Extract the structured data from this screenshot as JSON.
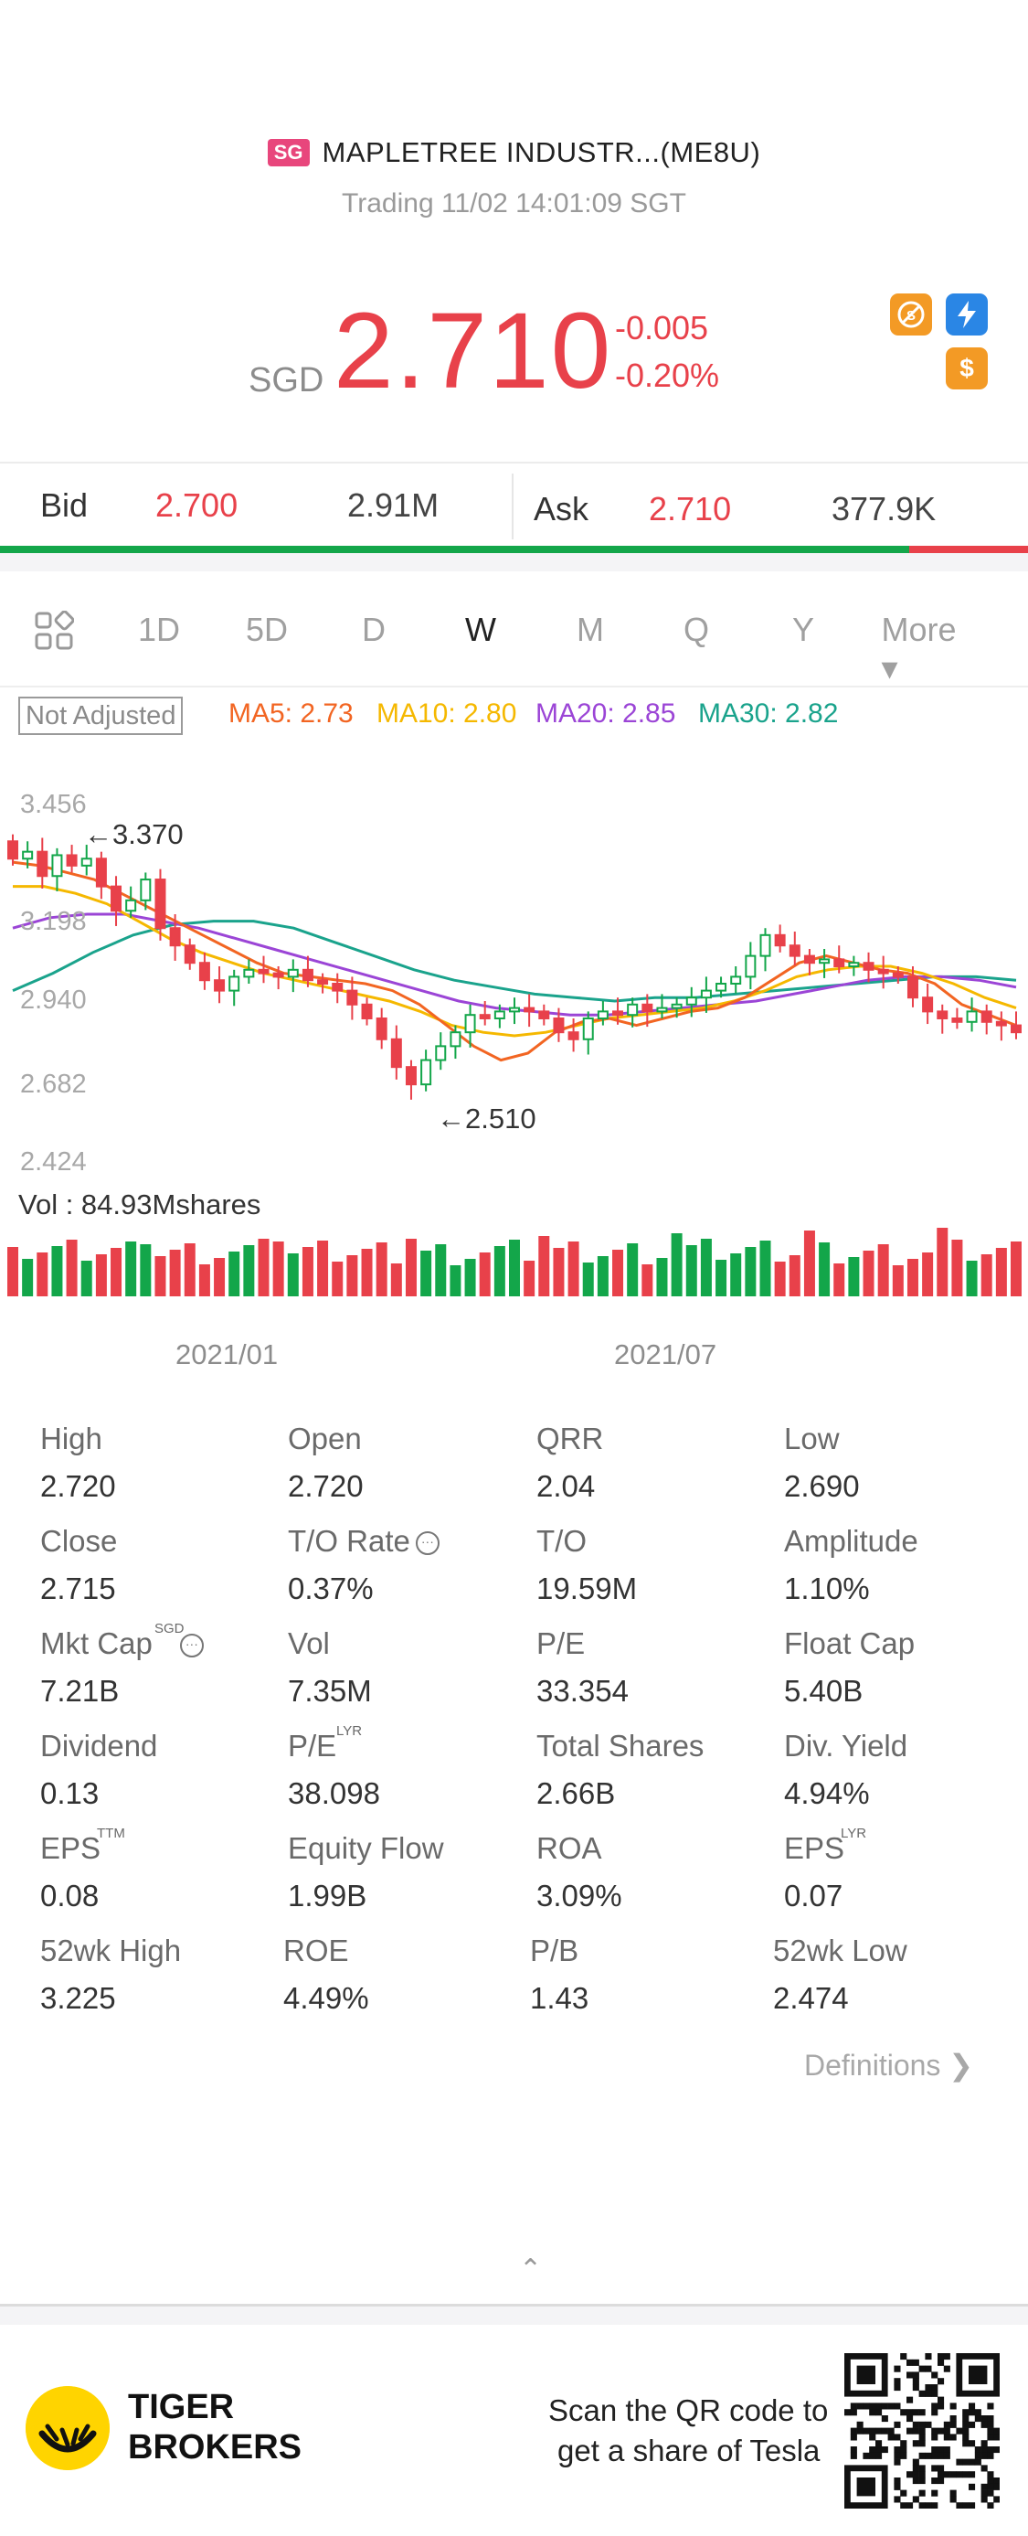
{
  "header": {
    "market_badge": "SG",
    "stock_name": "MAPLETREE INDUSTR...(ME8U)",
    "trading_status": "Trading 11/02 14:01:09 SGT",
    "currency": "SGD",
    "price": "2.710",
    "change_abs": "-0.005",
    "change_pct": "-0.20%",
    "icons": [
      "no-short-icon",
      "flash-icon",
      "dollar-icon"
    ],
    "colors": {
      "down": "#e8414a",
      "up": "#13a64a"
    }
  },
  "bid_ask": {
    "bid_label": "Bid",
    "bid_price": "2.700",
    "bid_volume": "2.91M",
    "ask_label": "Ask",
    "ask_price": "2.710",
    "ask_volume": "377.9K",
    "bid_share": 0.884
  },
  "tabs": {
    "items": [
      "1D",
      "5D",
      "D",
      "W",
      "M",
      "Q",
      "Y"
    ],
    "active": "W",
    "more_label": "More ▾"
  },
  "indicators": {
    "adjust_label": "Not Adjusted",
    "ma5": "MA5: 2.73",
    "ma10": "MA10: 2.80",
    "ma20": "MA20: 2.85",
    "ma30": "MA30: 2.82",
    "colors": {
      "ma5": "#f26522",
      "ma10": "#f5b800",
      "ma20": "#9b45d6",
      "ma30": "#1aa38c"
    }
  },
  "volume_label": "Vol  : 84.93Mshares",
  "chart_data": {
    "type": "candlestick",
    "y_ticks": [
      "3.456",
      "3.198",
      "2.940",
      "2.682",
      "2.424"
    ],
    "ylim": [
      2.424,
      3.456
    ],
    "x_ticks": [
      "2021/01",
      "2021/07"
    ],
    "high_annotation": "←3.370",
    "low_annotation": "←2.510",
    "closes": [
      3.3,
      3.32,
      3.25,
      3.31,
      3.28,
      3.3,
      3.22,
      3.15,
      3.18,
      3.24,
      3.1,
      3.05,
      3.0,
      2.95,
      2.92,
      2.96,
      2.98,
      2.97,
      2.96,
      2.98,
      2.95,
      2.94,
      2.92,
      2.88,
      2.84,
      2.78,
      2.7,
      2.65,
      2.72,
      2.76,
      2.8,
      2.85,
      2.84,
      2.86,
      2.87,
      2.86,
      2.84,
      2.8,
      2.78,
      2.84,
      2.86,
      2.85,
      2.88,
      2.86,
      2.87,
      2.88,
      2.9,
      2.92,
      2.94,
      2.96,
      3.02,
      3.08,
      3.05,
      3.02,
      3.0,
      3.01,
      2.99,
      3.0,
      2.98,
      2.97,
      2.96,
      2.9,
      2.86,
      2.84,
      2.83,
      2.86,
      2.83,
      2.82,
      2.8
    ],
    "ma5": [
      3.29,
      3.28,
      3.26,
      3.24,
      3.2,
      3.16,
      3.12,
      3.08,
      3.04,
      3.0,
      2.97,
      2.96,
      2.95,
      2.94,
      2.92,
      2.88,
      2.82,
      2.76,
      2.72,
      2.74,
      2.8,
      2.83,
      2.84,
      2.82,
      2.84,
      2.86,
      2.87,
      2.9,
      2.95,
      3.0,
      3.02,
      3.0,
      2.98,
      2.97,
      2.94,
      2.88,
      2.85,
      2.82
    ],
    "ma10": [
      3.22,
      3.22,
      3.2,
      3.17,
      3.12,
      3.07,
      3.03,
      3.0,
      2.97,
      2.95,
      2.93,
      2.91,
      2.89,
      2.86,
      2.82,
      2.8,
      2.79,
      2.8,
      2.82,
      2.84,
      2.85,
      2.86,
      2.87,
      2.89,
      2.92,
      2.96,
      2.98,
      2.99,
      2.99,
      2.97,
      2.94,
      2.9,
      2.87
    ],
    "ma20": [
      3.1,
      3.13,
      3.14,
      3.14,
      3.12,
      3.1,
      3.07,
      3.04,
      3.01,
      2.98,
      2.95,
      2.92,
      2.89,
      2.87,
      2.86,
      2.85,
      2.85,
      2.86,
      2.87,
      2.88,
      2.89,
      2.91,
      2.93,
      2.95,
      2.96,
      2.96,
      2.95,
      2.93
    ],
    "ma30": [
      2.92,
      2.97,
      3.03,
      3.08,
      3.11,
      3.12,
      3.12,
      3.1,
      3.06,
      3.02,
      2.98,
      2.95,
      2.93,
      2.91,
      2.9,
      2.89,
      2.9,
      2.9,
      2.91,
      2.92,
      2.93,
      2.94,
      2.95,
      2.96,
      2.96,
      2.95
    ]
  },
  "stats": [
    {
      "label": "High",
      "value": "2.720"
    },
    {
      "label": "Open",
      "value": "2.720"
    },
    {
      "label": "QRR",
      "value": "2.04"
    },
    {
      "label": "Low",
      "value": "2.690"
    },
    {
      "label": "Close",
      "value": "2.715"
    },
    {
      "label": "T/O Rate",
      "value": "0.37%"
    },
    {
      "label": "T/O",
      "value": "19.59M"
    },
    {
      "label": "Amplitude",
      "value": "1.10%"
    },
    {
      "label": "Mkt Cap",
      "value": "7.21B"
    },
    {
      "label": "Vol",
      "value": "7.35M"
    },
    {
      "label": "P/E",
      "value": "33.354"
    },
    {
      "label": "Float Cap",
      "value": "5.40B"
    },
    {
      "label": "Dividend",
      "value": "0.13"
    },
    {
      "label": "P/E",
      "value": "38.098"
    },
    {
      "label": "Total Shares",
      "value": "2.66B"
    },
    {
      "label": "Div. Yield",
      "value": "4.94%"
    },
    {
      "label": "EPS",
      "value": "0.08"
    },
    {
      "label": "Equity Flow",
      "value": "1.99B"
    },
    {
      "label": "ROA",
      "value": "3.09%"
    },
    {
      "label": "EPS",
      "value": "0.07"
    },
    {
      "label": "52wk High",
      "value": "3.225"
    },
    {
      "label": "ROE",
      "value": "4.49%"
    },
    {
      "label": "P/B",
      "value": "1.43"
    },
    {
      "label": "52wk Low",
      "value": "2.474"
    }
  ],
  "stat_superscripts": {
    "mkt_cap": "SGD",
    "pe_lyr": "LYR",
    "eps_ttm": "TTM",
    "eps_lyr": "LYR"
  },
  "definitions_label": "Definitions ❯",
  "footer": {
    "brand_line1": "TIGER",
    "brand_line2": "BROKERS",
    "qr_line1": "Scan the QR code to",
    "qr_line2": "get a share of Tesla"
  }
}
